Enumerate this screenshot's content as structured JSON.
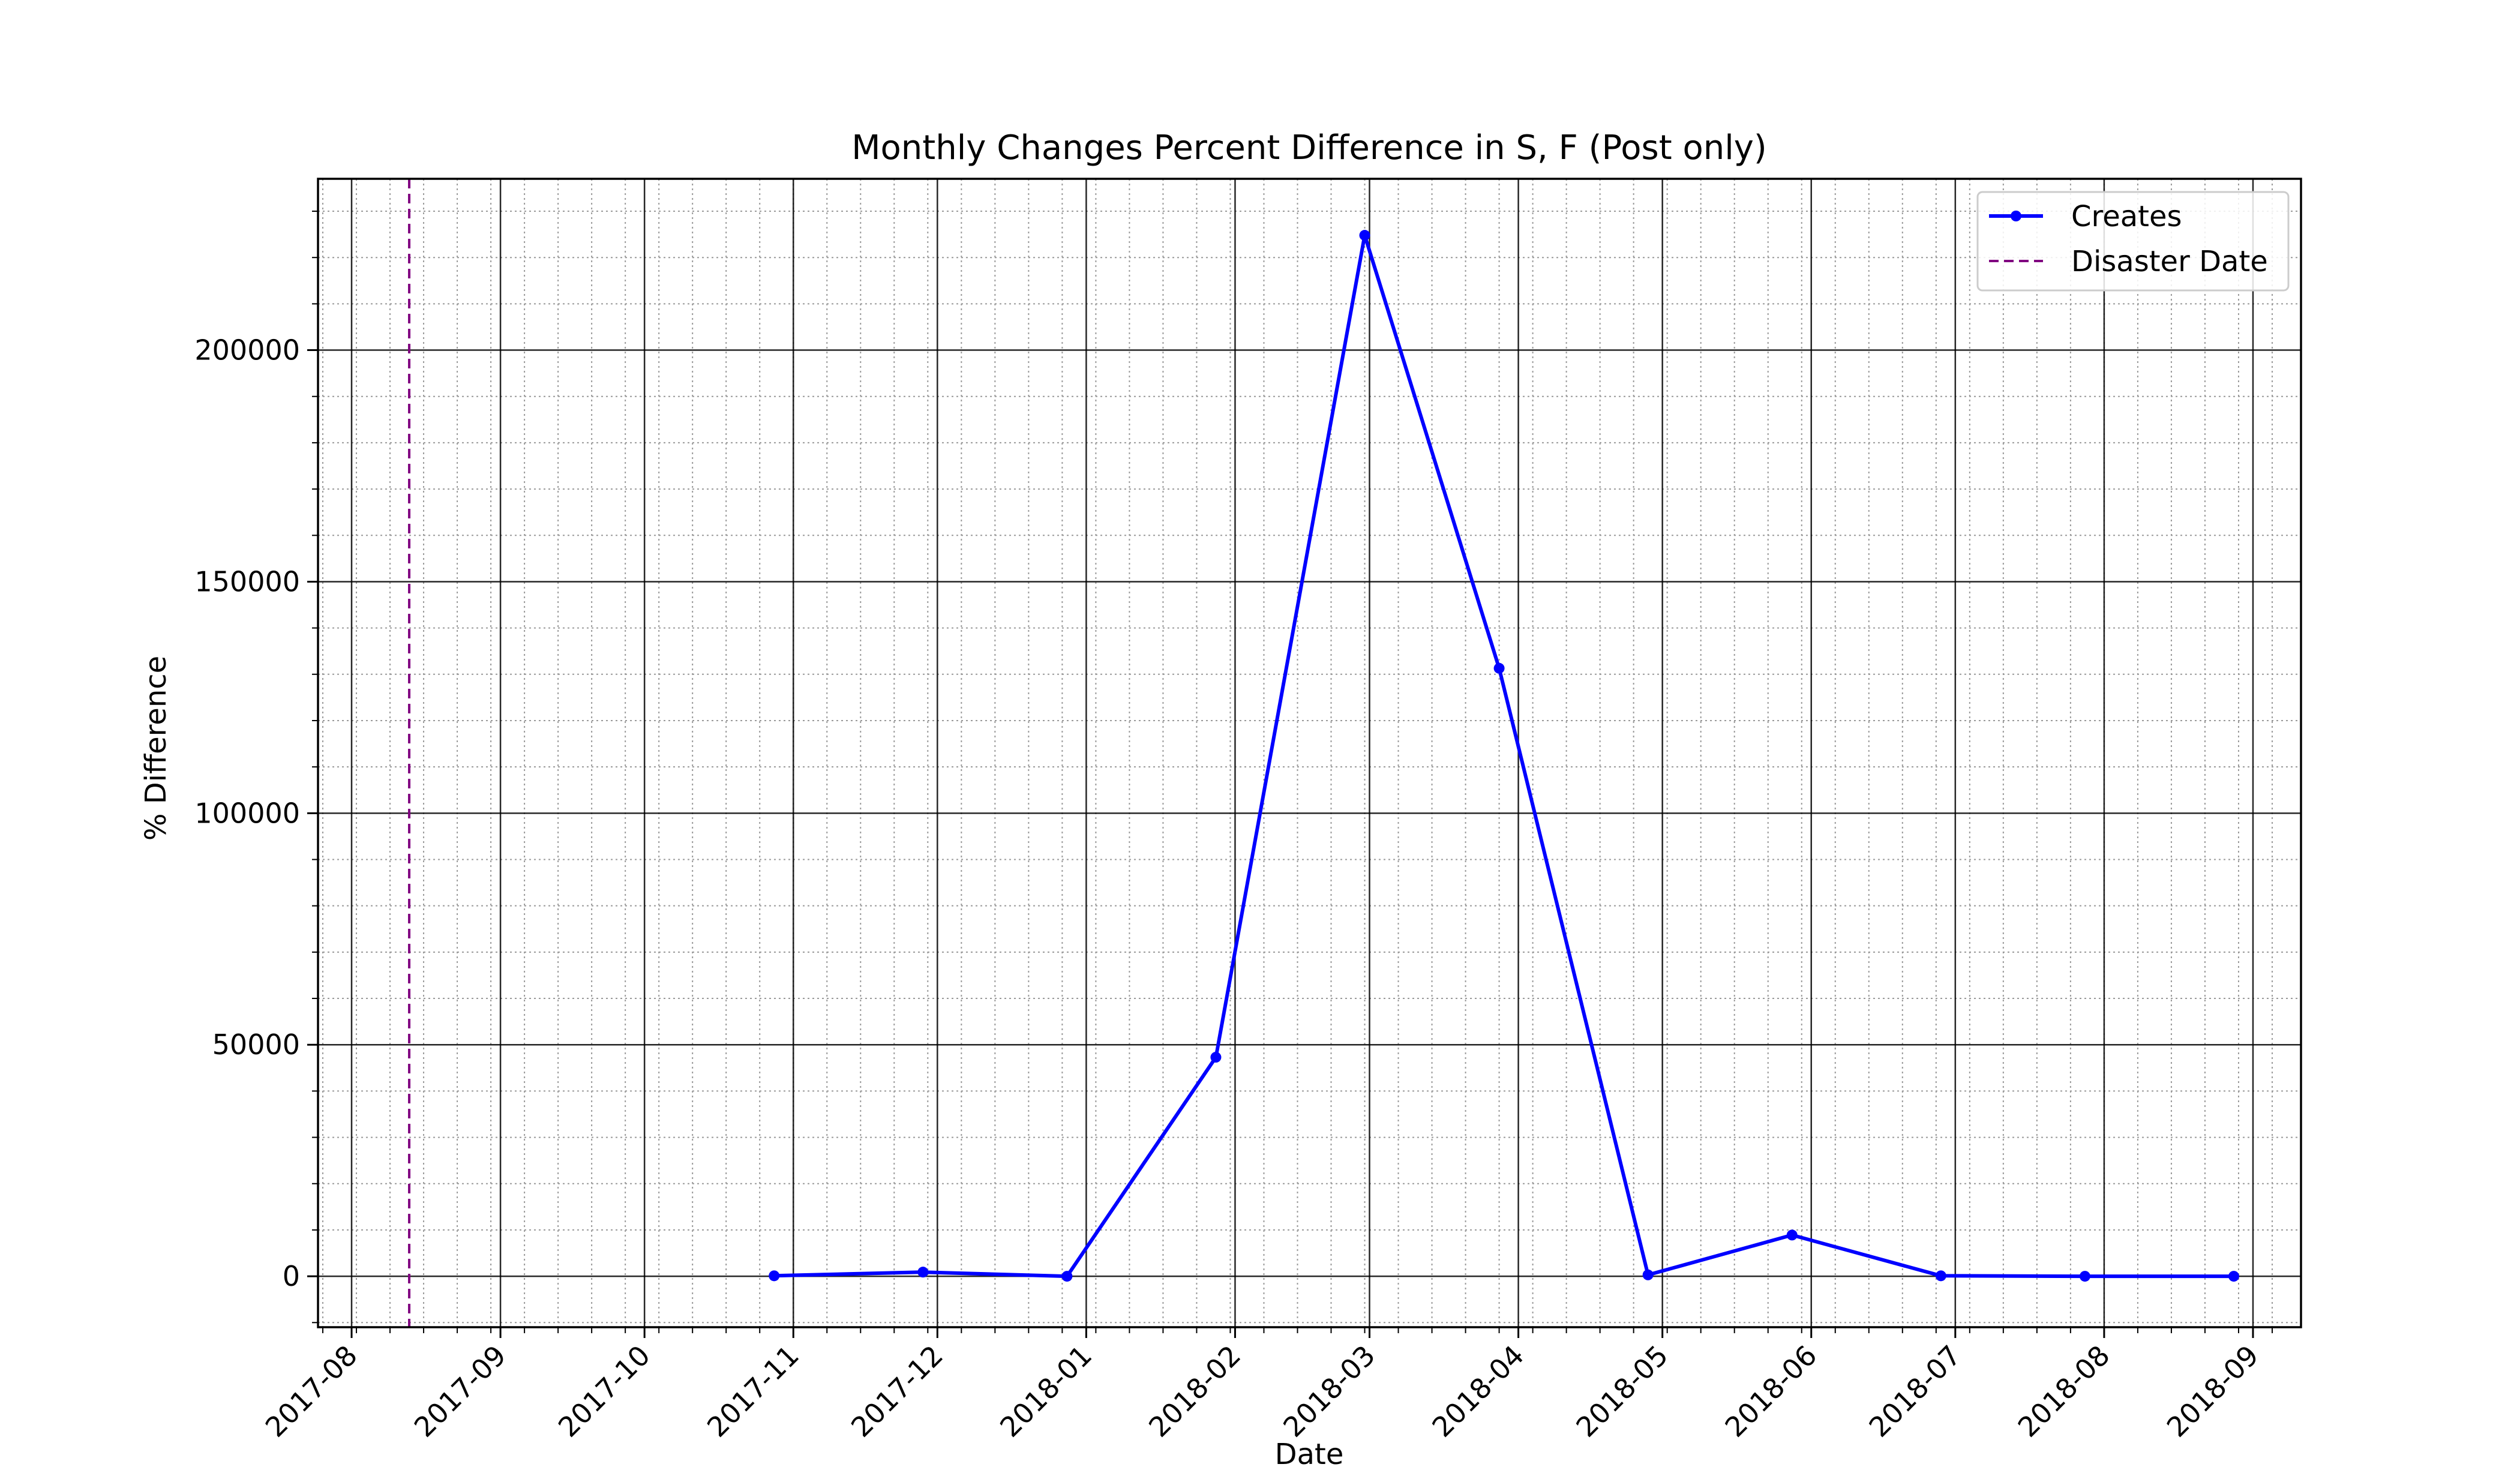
{
  "chart_data": {
    "type": "line",
    "title": "Monthly Changes Percent Difference in S, F (Post only)",
    "xlabel": "Date",
    "ylabel": "% Difference",
    "x_ticks": [
      "2017-08",
      "2017-09",
      "2017-10",
      "2017-11",
      "2017-12",
      "2018-01",
      "2018-02",
      "2018-03",
      "2018-04",
      "2018-05",
      "2018-06",
      "2018-07",
      "2018-08",
      "2018-09"
    ],
    "y_ticks": [
      0,
      50000,
      100000,
      150000,
      200000
    ],
    "y_tick_labels": [
      "0",
      "50000",
      "100000",
      "150000",
      "200000"
    ],
    "xlim": [
      "2017-07-25",
      "2018-09-11"
    ],
    "ylim": [
      -11000,
      237000
    ],
    "grid": "major and minor",
    "legend_position": "top-right",
    "series": [
      {
        "name": "Creates",
        "color": "#0000ff",
        "style": "solid line with circle markers",
        "x": [
          "2017-10-28",
          "2017-11-28",
          "2017-12-28",
          "2018-01-28",
          "2018-02-28",
          "2018-03-28",
          "2018-04-28",
          "2018-05-28",
          "2018-06-28",
          "2018-07-28",
          "2018-08-28"
        ],
        "y": [
          100,
          900,
          0,
          47300,
          224800,
          131300,
          300,
          8900,
          100,
          0,
          0
        ]
      },
      {
        "name": "Disaster Date",
        "color": "#800080",
        "style": "dashed vertical line",
        "x": [
          "2017-08-13"
        ]
      }
    ]
  }
}
